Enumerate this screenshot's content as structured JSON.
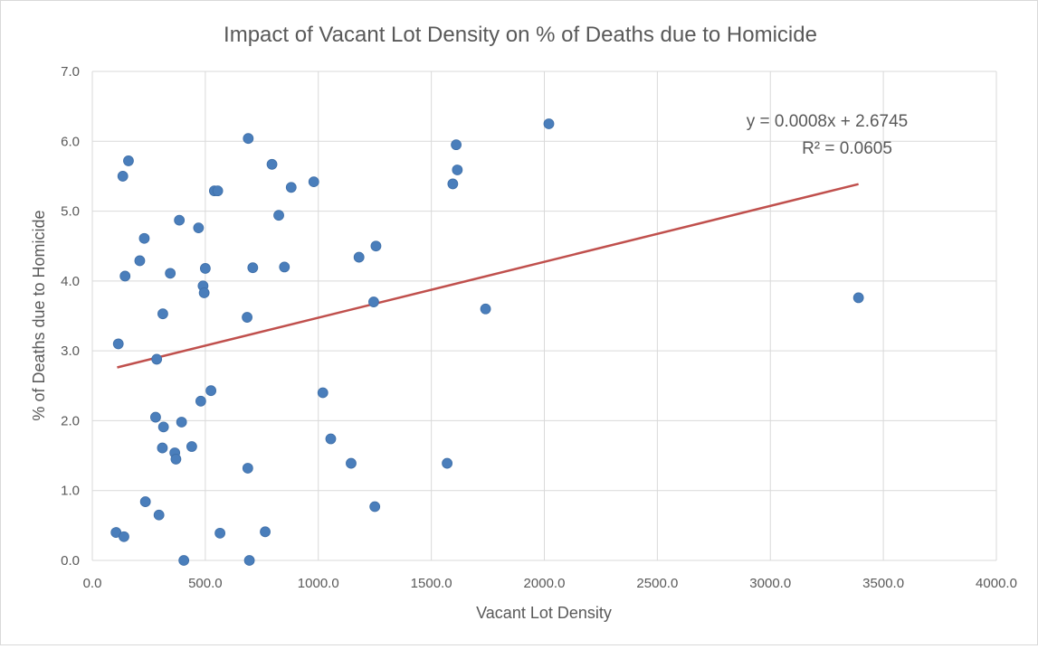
{
  "chart_data": {
    "type": "scatter",
    "title": "Impact of Vacant Lot Density on % of Deaths due to Homicide",
    "xlabel": "Vacant Lot Density",
    "ylabel": "% of Deaths due to Homicide",
    "xlim": [
      0,
      4000
    ],
    "ylim": [
      0,
      7
    ],
    "xticks": [
      0,
      500,
      1000,
      1500,
      2000,
      2500,
      3000,
      3500,
      4000
    ],
    "yticks": [
      0,
      1,
      2,
      3,
      4,
      5,
      6,
      7
    ],
    "xtick_labels": [
      "0.0",
      "500.0",
      "1000.0",
      "1500.0",
      "2000.0",
      "2500.0",
      "3000.0",
      "3500.0",
      "4000.0"
    ],
    "ytick_labels": [
      "0.0",
      "1.0",
      "2.0",
      "3.0",
      "4.0",
      "5.0",
      "6.0",
      "7.0"
    ],
    "grid": "vertical and horizontal major gridlines",
    "legend": "none",
    "marker_color": "#4a7ebb",
    "trendline_color": "#c0504d",
    "points": [
      [
        105,
        0.4
      ],
      [
        115,
        3.1
      ],
      [
        135,
        5.5
      ],
      [
        140,
        0.34
      ],
      [
        145,
        4.07
      ],
      [
        160,
        5.72
      ],
      [
        210,
        4.29
      ],
      [
        230,
        4.61
      ],
      [
        235,
        0.84
      ],
      [
        280,
        2.05
      ],
      [
        285,
        2.88
      ],
      [
        295,
        0.65
      ],
      [
        310,
        1.61
      ],
      [
        312,
        3.53
      ],
      [
        315,
        1.91
      ],
      [
        345,
        4.11
      ],
      [
        365,
        1.54
      ],
      [
        370,
        1.45
      ],
      [
        385,
        4.87
      ],
      [
        395,
        1.98
      ],
      [
        405,
        0.0
      ],
      [
        440,
        1.63
      ],
      [
        470,
        4.76
      ],
      [
        480,
        2.28
      ],
      [
        490,
        3.93
      ],
      [
        495,
        3.83
      ],
      [
        500,
        4.18
      ],
      [
        525,
        2.43
      ],
      [
        540,
        5.29
      ],
      [
        555,
        5.29
      ],
      [
        565,
        0.39
      ],
      [
        685,
        3.48
      ],
      [
        688,
        1.32
      ],
      [
        690,
        6.04
      ],
      [
        695,
        0.0
      ],
      [
        710,
        4.19
      ],
      [
        765,
        0.41
      ],
      [
        795,
        5.67
      ],
      [
        825,
        4.94
      ],
      [
        850,
        4.2
      ],
      [
        880,
        5.34
      ],
      [
        980,
        5.42
      ],
      [
        1020,
        2.4
      ],
      [
        1055,
        1.74
      ],
      [
        1145,
        1.39
      ],
      [
        1180,
        4.34
      ],
      [
        1245,
        3.7
      ],
      [
        1250,
        0.77
      ],
      [
        1255,
        4.5
      ],
      [
        1570,
        1.39
      ],
      [
        1595,
        5.39
      ],
      [
        1610,
        5.95
      ],
      [
        1615,
        5.59
      ],
      [
        1740,
        3.6
      ],
      [
        2020,
        6.25
      ],
      [
        3390,
        3.76
      ]
    ],
    "trendline": {
      "type": "linear",
      "x_range": [
        110,
        3390
      ],
      "equation": "y = 0.0008x + 2.6745",
      "r_squared": "R² = 0.0605"
    }
  }
}
